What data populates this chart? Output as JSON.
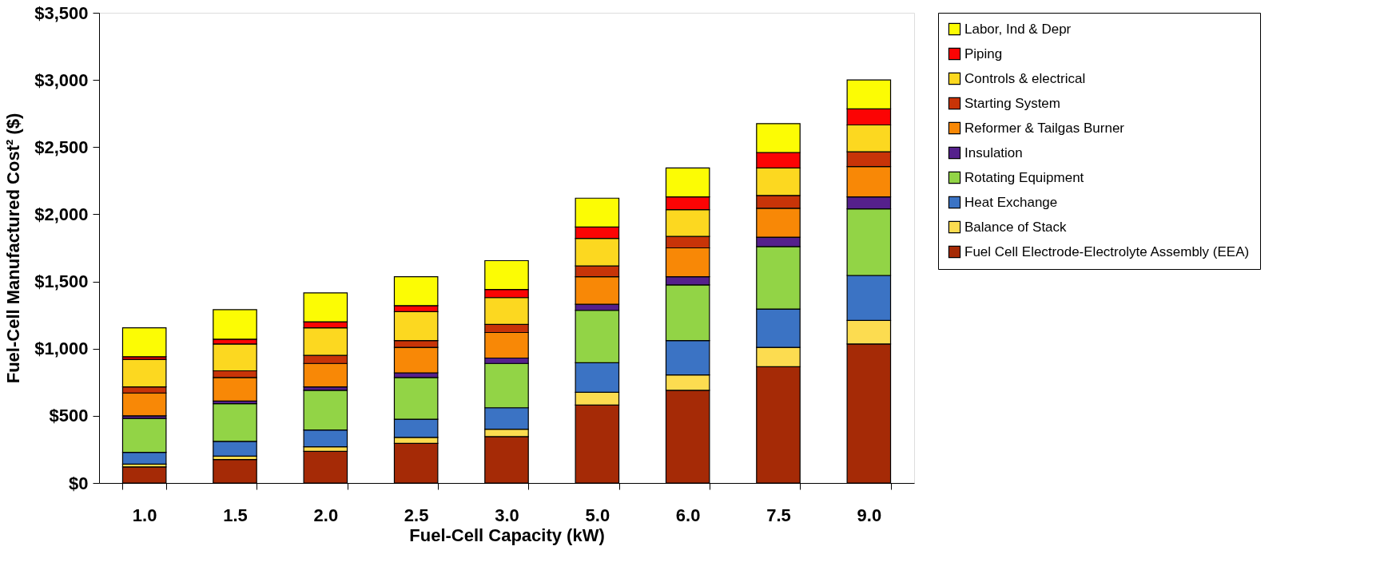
{
  "chart_data": {
    "type": "bar",
    "stacked": true,
    "xlabel": "Fuel-Cell Capacity (kW)",
    "ylabel": "Fuel-Cell Manufactured Cost² ($)",
    "categories": [
      "1.0",
      "1.5",
      "2.0",
      "2.5",
      "3.0",
      "5.0",
      "6.0",
      "7.5",
      "9.0"
    ],
    "ylim": [
      0,
      3500
    ],
    "yticks": [
      {
        "value": 0,
        "label": "$0"
      },
      {
        "value": 500,
        "label": "$500"
      },
      {
        "value": 1000,
        "label": "$1,000"
      },
      {
        "value": 1500,
        "label": "$1,500"
      },
      {
        "value": 2000,
        "label": "$2,000"
      },
      {
        "value": 2500,
        "label": "$2,500"
      },
      {
        "value": 3000,
        "label": "$3,000"
      },
      {
        "value": 3500,
        "label": "$3,500"
      }
    ],
    "grid": false,
    "legend": "right",
    "series": [
      {
        "name": "Fuel Cell Electrode-Electrolyte Assembly (EEA)",
        "color": "#a52a06",
        "values": [
          120,
          175,
          235,
          295,
          345,
          580,
          690,
          865,
          1035
        ]
      },
      {
        "name": "Balance of Stack",
        "color": "#fcdc50",
        "values": [
          20,
          25,
          35,
          45,
          55,
          95,
          115,
          145,
          175
        ]
      },
      {
        "name": "Heat Exchange",
        "color": "#3b73c4",
        "values": [
          88,
          110,
          125,
          135,
          160,
          220,
          255,
          285,
          335
        ]
      },
      {
        "name": "Rotating Equipment",
        "color": "#92d446",
        "values": [
          252,
          280,
          295,
          310,
          330,
          390,
          415,
          465,
          495
        ]
      },
      {
        "name": "Insulation",
        "color": "#55208c",
        "values": [
          20,
          20,
          25,
          35,
          40,
          45,
          60,
          70,
          90
        ]
      },
      {
        "name": "Reformer & Tailgas Burner",
        "color": "#f88806",
        "values": [
          170,
          175,
          175,
          190,
          190,
          205,
          215,
          215,
          225
        ]
      },
      {
        "name": "Starting System",
        "color": "#c83408",
        "values": [
          45,
          50,
          60,
          50,
          60,
          80,
          85,
          95,
          110
        ]
      },
      {
        "name": "Controls & electrical",
        "color": "#fcd820",
        "values": [
          205,
          200,
          205,
          215,
          200,
          205,
          200,
          205,
          200
        ]
      },
      {
        "name": "Piping",
        "color": "#fc0404",
        "values": [
          20,
          35,
          45,
          45,
          60,
          85,
          95,
          115,
          120
        ]
      },
      {
        "name": "Labor, Ind & Depr",
        "color": "#fcfc04",
        "values": [
          215,
          220,
          215,
          215,
          215,
          215,
          215,
          215,
          215
        ]
      }
    ]
  }
}
